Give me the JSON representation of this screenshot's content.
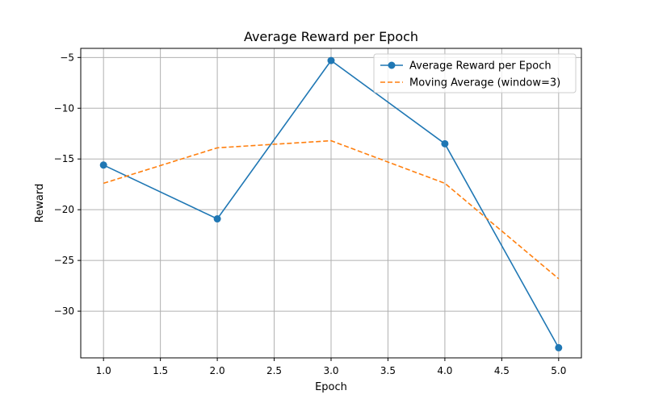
{
  "chart_data": {
    "type": "line",
    "title": "Average Reward per Epoch",
    "xlabel": "Epoch",
    "ylabel": "Reward",
    "xlim": [
      0.8,
      5.2
    ],
    "ylim": [
      -34.6,
      -4.1
    ],
    "xticks": [
      1.0,
      1.5,
      2.0,
      2.5,
      3.0,
      3.5,
      4.0,
      4.5,
      5.0
    ],
    "xtick_labels": [
      "1.0",
      "1.5",
      "2.0",
      "2.5",
      "3.0",
      "3.5",
      "4.0",
      "4.5",
      "5.0"
    ],
    "yticks": [
      -30,
      -25,
      -20,
      -15,
      -10,
      -5
    ],
    "ytick_labels": [
      "−30",
      "−25",
      "−20",
      "−15",
      "−10",
      "−5"
    ],
    "grid": true,
    "legend_position": "top-right",
    "series": [
      {
        "name": "Average Reward per Epoch",
        "x": [
          1.0,
          2.0,
          3.0,
          4.0,
          5.0
        ],
        "values": [
          -15.6,
          -20.9,
          -5.3,
          -13.5,
          -33.6
        ],
        "color": "#1f77b4",
        "style": "solid",
        "marker": "circle"
      },
      {
        "name": "Moving Average (window=3)",
        "x": [
          1.0,
          2.0,
          3.0,
          4.0,
          5.0
        ],
        "values": [
          -17.4,
          -13.9,
          -13.2,
          -17.4,
          -26.8
        ],
        "color": "#ff7f0e",
        "style": "dashed",
        "marker": "none"
      }
    ]
  }
}
